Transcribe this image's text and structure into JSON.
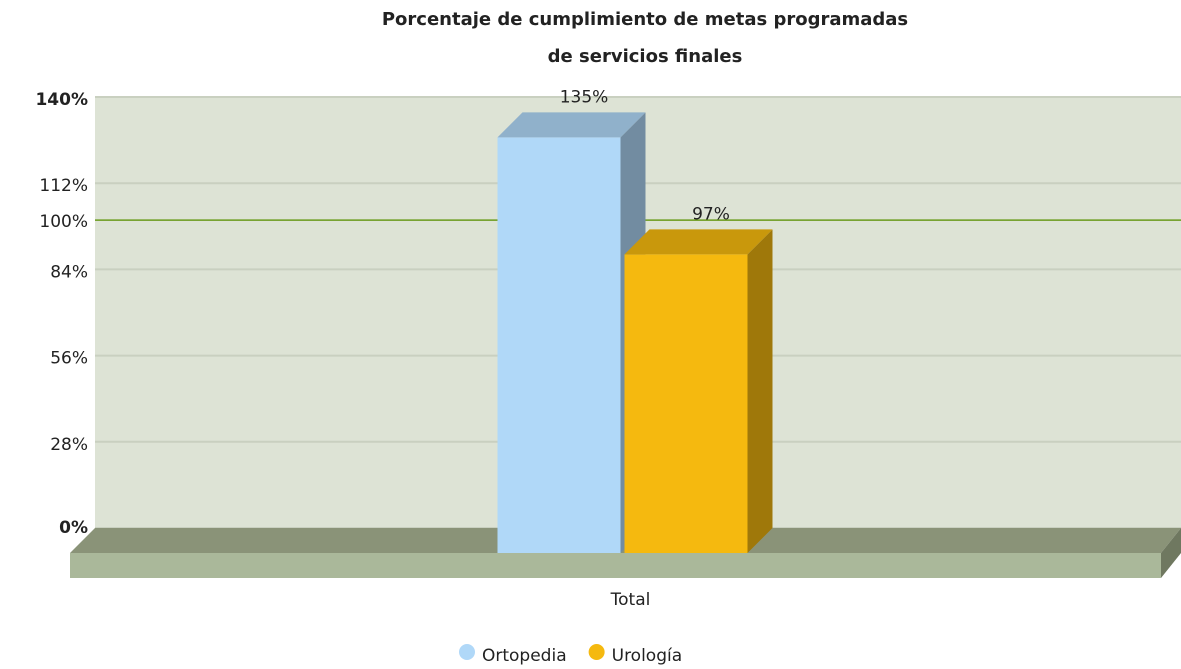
{
  "chart_data": {
    "type": "bar3d",
    "title_lines": [
      "Porcentaje de cumplimiento de metas programadas",
      "de servicios finales"
    ],
    "categories": [
      "Total"
    ],
    "series": [
      {
        "name": "Ortopedia",
        "color": "#b0d8f8",
        "values": [
          135
        ],
        "value_labels": [
          "135%"
        ]
      },
      {
        "name": "Urología",
        "color": "#f5b90f",
        "values": [
          97
        ],
        "value_labels": [
          "97%"
        ]
      }
    ],
    "ylim": [
      0,
      140
    ],
    "yticks": [
      {
        "value": 0,
        "label": "0%"
      },
      {
        "value": 28,
        "label": "28%"
      },
      {
        "value": 56,
        "label": "56%"
      },
      {
        "value": 84,
        "label": "84%"
      },
      {
        "value": 112,
        "label": "112%"
      },
      {
        "value": 140,
        "label": "140%"
      }
    ],
    "target_line": {
      "value": 100,
      "label": "100%",
      "color": "#6a9a1a"
    },
    "grid": true
  }
}
